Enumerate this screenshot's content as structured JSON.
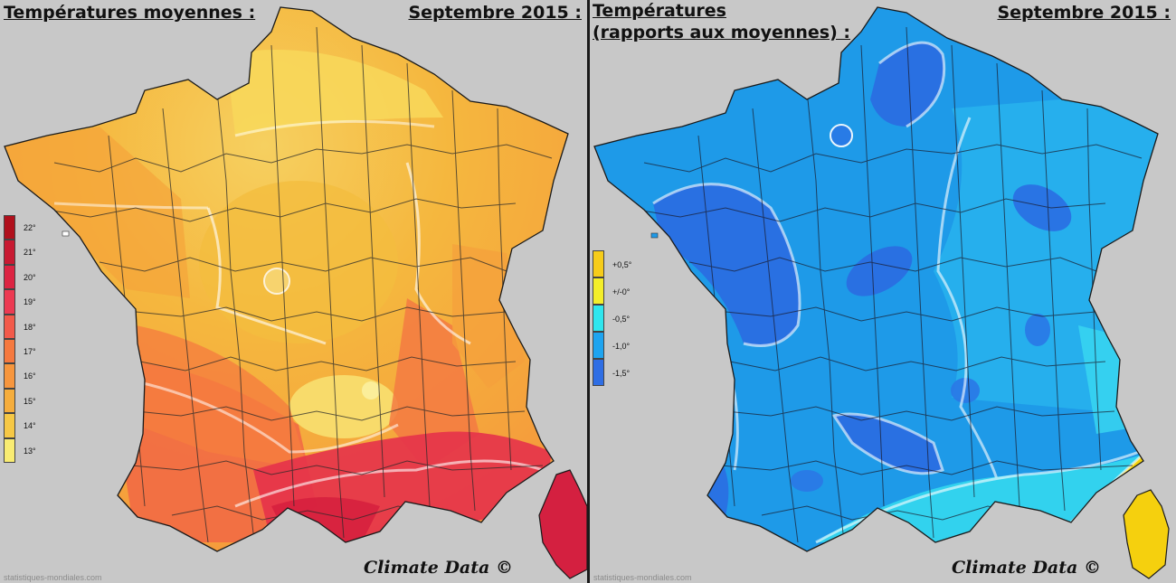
{
  "left_panel": {
    "title": "Températures moyennes :",
    "period": "Septembre 2015 :",
    "credit": "Climate Data ©",
    "site": "statistiques-mondiales.com",
    "legend": [
      {
        "label": "22°",
        "color": "#b0101c"
      },
      {
        "label": "21°",
        "color": "#c81a32"
      },
      {
        "label": "20°",
        "color": "#dc2442"
      },
      {
        "label": "19°",
        "color": "#ec3a52"
      },
      {
        "label": "18°",
        "color": "#f25a4a"
      },
      {
        "label": "17°",
        "color": "#f5793f"
      },
      {
        "label": "16°",
        "color": "#f7963d"
      },
      {
        "label": "15°",
        "color": "#f5ad3c"
      },
      {
        "label": "14°",
        "color": "#f6c845"
      },
      {
        "label": "13°",
        "color": "#f9ec72"
      }
    ]
  },
  "right_panel": {
    "title_line1": "Températures",
    "title_line2": "(rapports aux moyennes) :",
    "period": "Septembre 2015 :",
    "credit": "Climate Data ©",
    "site": "statistiques-mondiales.com",
    "legend": [
      {
        "label": "+0,5°",
        "color": "#f6cc1a"
      },
      {
        "label": "+/-0°",
        "color": "#f4ee2a"
      },
      {
        "label": "-0,5°",
        "color": "#2fe6ee"
      },
      {
        "label": "-1,0°",
        "color": "#1ea4f0"
      },
      {
        "label": "-1,5°",
        "color": "#2f6ee4"
      }
    ]
  }
}
